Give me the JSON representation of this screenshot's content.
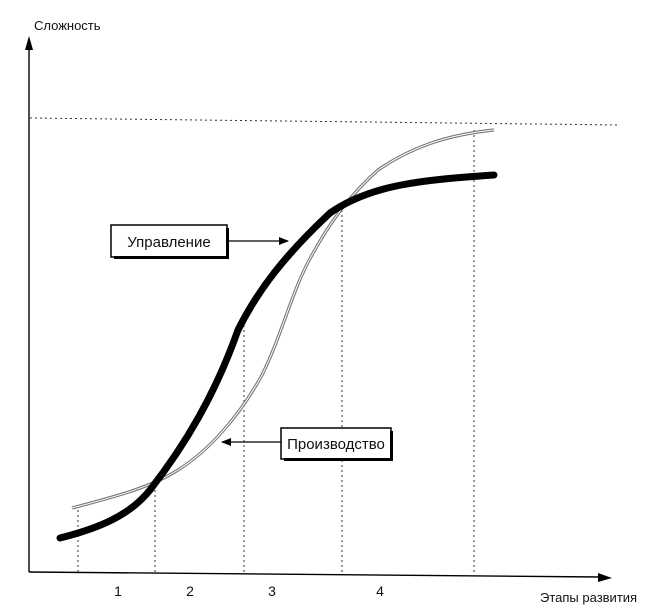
{
  "axes": {
    "y_title": "Сложность",
    "x_title": "Этапы развития"
  },
  "stages": [
    "1",
    "2",
    "3",
    "4"
  ],
  "callouts": {
    "management": "Управление",
    "production": "Производство"
  },
  "curves": {
    "management": {
      "stroke": "#000000",
      "style": "thick"
    },
    "production": {
      "stroke": "#888888",
      "style": "thin-double"
    }
  }
}
